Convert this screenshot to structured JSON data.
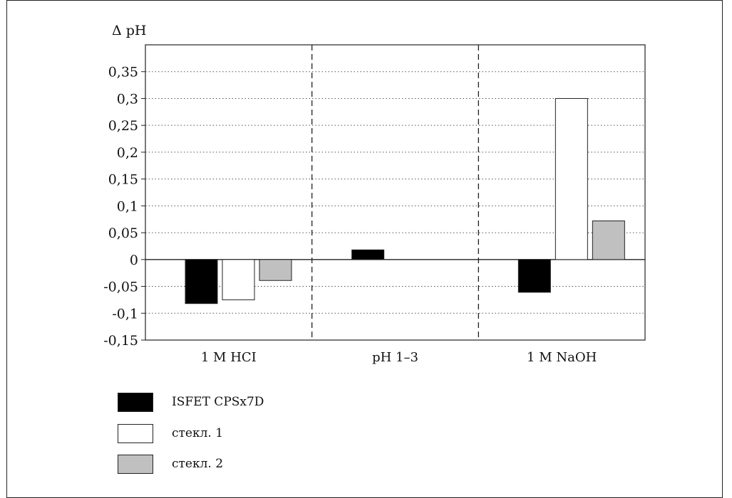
{
  "chart_data": {
    "type": "bar",
    "ylabel": "Δ pH",
    "categories": [
      "1 M HCI",
      "pH 1–3",
      "1 M NaOH"
    ],
    "ylim": [
      -0.15,
      0.4
    ],
    "yticks": [
      "0,35",
      "0,3",
      "0,25",
      "0,2",
      "0,15",
      "0,1",
      "0,05",
      "0",
      "-0,05",
      "-0,1",
      "-0,15"
    ],
    "ytick_values": [
      0.35,
      0.3,
      0.25,
      0.2,
      0.15,
      0.1,
      0.05,
      0,
      -0.05,
      -0.1,
      -0.15
    ],
    "grid": "horizontal dotted",
    "series": [
      {
        "name": "ISFET CPSx7D",
        "color": "#000000",
        "values": [
          -0.082,
          0.018,
          -0.061
        ]
      },
      {
        "name": "стекл. 1",
        "color": "#ffffff",
        "values": [
          -0.075,
          null,
          0.3
        ]
      },
      {
        "name": "стекл. 2",
        "color": "#c0c0c0",
        "values": [
          -0.039,
          null,
          0.072
        ]
      }
    ],
    "legend_position": "bottom-left"
  }
}
